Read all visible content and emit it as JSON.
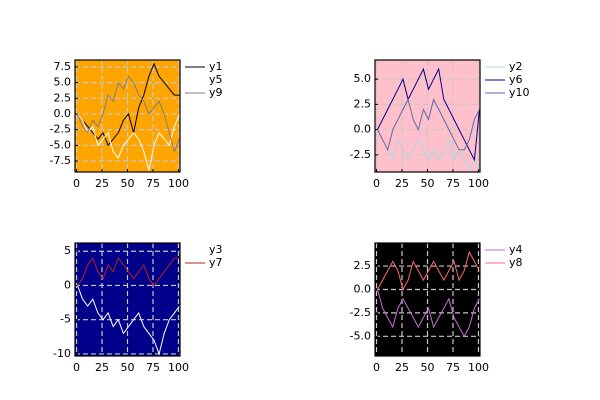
{
  "chart_data": [
    {
      "type": "line",
      "background": "#ffa500",
      "grid": true,
      "x": [
        1,
        6,
        11,
        16,
        21,
        26,
        31,
        36,
        41,
        46,
        51,
        56,
        61,
        66,
        71,
        76,
        81,
        86,
        91,
        96,
        101
      ],
      "xlim": [
        -1.5,
        101.5
      ],
      "xticks": [
        0,
        25,
        50,
        75,
        100
      ],
      "ylim": [
        -9.25,
        8.6
      ],
      "yticks": [
        {
          "value": -7.5,
          "label": "-7.5"
        },
        {
          "value": -5,
          "label": "-5.0"
        },
        {
          "value": -2.5,
          "label": "-2.5"
        },
        {
          "value": 0,
          "label": "0.0"
        },
        {
          "value": 2.5,
          "label": "2.5"
        },
        {
          "value": 5,
          "label": "5.0"
        },
        {
          "value": 7.5,
          "label": "7.5"
        }
      ],
      "series": [
        {
          "name": "y1",
          "color": "#000000",
          "values": [
            0,
            -1,
            -2,
            -3,
            -4,
            -3,
            -5,
            -4,
            -3,
            -1,
            0,
            -3,
            1,
            3,
            6,
            8,
            6,
            5,
            4,
            3,
            3
          ]
        },
        {
          "name": "y5",
          "color": "#ffffff",
          "values": [
            0,
            -1,
            -3,
            -2,
            -5,
            -4,
            -3,
            -6,
            -7,
            -5,
            -4,
            -3,
            -4,
            -6,
            -9,
            -5,
            -3,
            -4,
            -5,
            -2,
            0
          ]
        },
        {
          "name": "y9",
          "color": "#808080",
          "values": [
            0,
            -2,
            -3,
            -1,
            -2,
            0,
            3,
            2,
            5,
            4,
            6,
            5,
            3,
            2,
            0,
            1,
            2,
            0,
            -3,
            -6,
            -4
          ]
        }
      ]
    },
    {
      "type": "line",
      "background": "#ffc0cb",
      "grid": true,
      "x": [
        1,
        6,
        11,
        16,
        21,
        26,
        31,
        36,
        41,
        46,
        51,
        56,
        61,
        66,
        71,
        76,
        81,
        86,
        91,
        96,
        101
      ],
      "xlim": [
        -1.5,
        101.5
      ],
      "xticks": [
        0,
        25,
        50,
        75,
        100
      ],
      "ylim": [
        -4.2,
        6.9
      ],
      "yticks": [
        {
          "value": -2.5,
          "label": "-2.5"
        },
        {
          "value": 0,
          "label": "0.0"
        },
        {
          "value": 2.5,
          "label": "2.5"
        },
        {
          "value": 5,
          "label": "5.0"
        }
      ],
      "series": [
        {
          "name": "y2",
          "color": "#add8e6",
          "values": [
            0,
            -1,
            -2,
            -3,
            -1,
            -2,
            -3,
            -2,
            -1,
            -2,
            -3,
            -2,
            -3,
            -2,
            -1,
            -3,
            -2,
            -3,
            -4,
            -3,
            -4
          ]
        },
        {
          "name": "y6",
          "color": "#00008b",
          "values": [
            0,
            1,
            2,
            3,
            4,
            5,
            3,
            4,
            5,
            6,
            4,
            5,
            6,
            3,
            2,
            1,
            0,
            -1,
            -2,
            -3,
            2
          ]
        },
        {
          "name": "y10",
          "color": "#5a6aa8",
          "values": [
            0,
            -1,
            -2,
            0,
            1,
            2,
            3,
            1,
            0,
            2,
            1,
            3,
            2,
            1,
            0,
            -1,
            -2,
            -2,
            -1,
            1,
            2
          ]
        }
      ]
    },
    {
      "type": "line",
      "background": "#00008b",
      "grid": true,
      "x": [
        1,
        6,
        11,
        16,
        21,
        26,
        31,
        36,
        41,
        46,
        51,
        56,
        61,
        66,
        71,
        76,
        81,
        86,
        91,
        96,
        101
      ],
      "xlim": [
        -1.5,
        101.5
      ],
      "xticks": [
        0,
        25,
        50,
        75,
        100
      ],
      "ylim": [
        -10.3,
        6.2
      ],
      "yticks": [
        -10,
        -5,
        0,
        5
      ],
      "series": [
        {
          "name": "y3",
          "color": "#ffffff",
          "values": [
            0,
            -2,
            -3,
            -2,
            -4,
            -5,
            -4,
            -6,
            -5,
            -7,
            -6,
            -5,
            -4,
            -6,
            -7,
            -8,
            -10,
            -7,
            -5,
            -4,
            -3
          ]
        },
        {
          "name": "y7",
          "color": "#b22222",
          "values": [
            0,
            1,
            3,
            4,
            2,
            1,
            3,
            2,
            4,
            3,
            2,
            1,
            2,
            3,
            1,
            0,
            1,
            2,
            3,
            4,
            4
          ]
        }
      ]
    },
    {
      "type": "line",
      "background": "#000000",
      "grid": true,
      "x": [
        1,
        6,
        11,
        16,
        21,
        26,
        31,
        36,
        41,
        46,
        51,
        56,
        61,
        66,
        71,
        76,
        81,
        86,
        91,
        96,
        101
      ],
      "xlim": [
        -1.5,
        101.5
      ],
      "xticks": [
        0,
        25,
        50,
        75,
        100
      ],
      "ylim": [
        -7.1,
        4.96
      ],
      "yticks": [
        {
          "value": -5,
          "label": "-5.0"
        },
        {
          "value": -2.5,
          "label": "-2.5"
        },
        {
          "value": 0,
          "label": "0.0"
        },
        {
          "value": 2.5,
          "label": "2.5"
        }
      ],
      "series": [
        {
          "name": "y4",
          "color": "#c86bd6",
          "values": [
            0,
            -2,
            -3,
            -4,
            -2,
            -1,
            -2,
            -3,
            -4,
            -3,
            -2,
            -4,
            -3,
            -2,
            -1,
            -3,
            -4,
            -5,
            -4,
            -2,
            -1
          ]
        },
        {
          "name": "y8",
          "color": "#ff6a6a",
          "values": [
            0,
            1,
            2,
            3,
            2,
            0,
            1,
            3,
            2,
            1,
            2,
            3,
            2,
            1,
            2,
            3,
            1,
            2,
            4,
            3,
            2
          ]
        }
      ]
    }
  ]
}
